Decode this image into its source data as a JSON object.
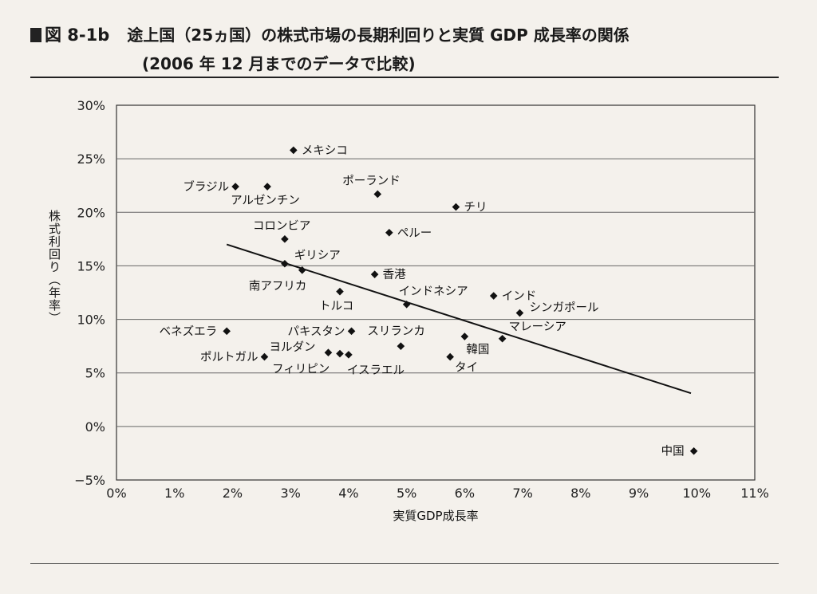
{
  "header": {
    "figure_label": "図 8-1b",
    "title": "途上国（25ヵ国）の株式市場の長期利回りと実質 GDP 成長率の関係",
    "subtitle": "(2006 年 12 月までのデータで比較)"
  },
  "chart_data": {
    "type": "scatter",
    "xlabel": "実質GDP成長率",
    "ylabel": "株式利回り（年率）",
    "xlim": [
      0,
      11
    ],
    "ylim": [
      -5,
      30
    ],
    "x_ticks": [
      "0%",
      "1%",
      "2%",
      "3%",
      "4%",
      "5%",
      "6%",
      "7%",
      "8%",
      "9%",
      "10%",
      "11%"
    ],
    "y_ticks": [
      "30%",
      "25%",
      "20%",
      "15%",
      "10%",
      "5%",
      "0%",
      "−5%"
    ],
    "grid": "horizontal",
    "points": [
      {
        "name": "メキシコ",
        "x": 3.05,
        "y": 25.8
      },
      {
        "name": "ブラジル",
        "x": 2.05,
        "y": 22.4
      },
      {
        "name": "アルゼンチン",
        "x": 2.6,
        "y": 22.4
      },
      {
        "name": "ポーランド",
        "x": 4.5,
        "y": 21.7
      },
      {
        "name": "チリ",
        "x": 5.85,
        "y": 20.5
      },
      {
        "name": "ペルー",
        "x": 4.7,
        "y": 18.1
      },
      {
        "name": "コロンビア",
        "x": 2.9,
        "y": 17.5
      },
      {
        "name": "ギリシア",
        "x": 3.2,
        "y": 14.6
      },
      {
        "name": "香港",
        "x": 4.45,
        "y": 14.2
      },
      {
        "name": "南アフリカ",
        "x": 2.9,
        "y": 15.2
      },
      {
        "name": "トルコ",
        "x": 3.85,
        "y": 12.6
      },
      {
        "name": "インドネシア",
        "x": 5.0,
        "y": 11.4
      },
      {
        "name": "インド",
        "x": 6.5,
        "y": 12.2
      },
      {
        "name": "シンガポール",
        "x": 6.95,
        "y": 10.6
      },
      {
        "name": "マレーシア",
        "x": 6.65,
        "y": 8.2
      },
      {
        "name": "ベネズエラ",
        "x": 1.9,
        "y": 8.9
      },
      {
        "name": "パキスタン",
        "x": 4.05,
        "y": 8.9
      },
      {
        "name": "スリランカ",
        "x": 4.9,
        "y": 7.5
      },
      {
        "name": "韓国",
        "x": 6.0,
        "y": 8.4
      },
      {
        "name": "ヨルダン",
        "x": 3.65,
        "y": 6.9
      },
      {
        "name": "ポルトガル",
        "x": 2.55,
        "y": 6.5
      },
      {
        "name": "フィリピン",
        "x": 3.85,
        "y": 6.8
      },
      {
        "name": "イスラエル",
        "x": 4.0,
        "y": 6.7
      },
      {
        "name": "タイ",
        "x": 5.75,
        "y": 6.5
      },
      {
        "name": "中国",
        "x": 9.95,
        "y": -2.3
      }
    ],
    "trendline": {
      "x": [
        1.9,
        9.9
      ],
      "y": [
        17.0,
        3.1
      ]
    }
  }
}
